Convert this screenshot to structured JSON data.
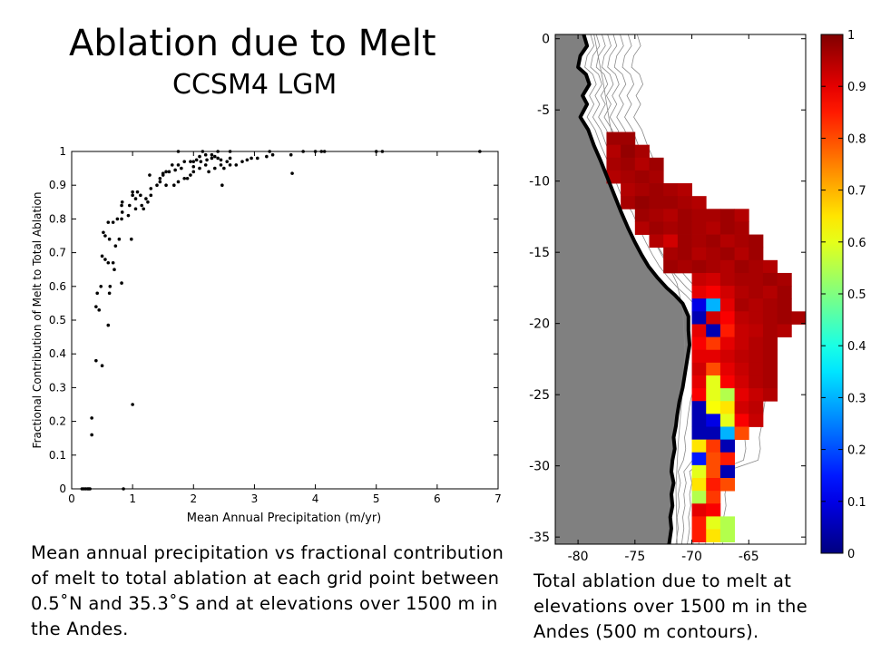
{
  "title": "Ablation due to Melt",
  "subtitle": "CCSM4 LGM",
  "caption_left": "Mean annual precipitation vs fractional contribution of melt to total ablation at each grid point between 0.5˚N and 35.3˚S and at elevations over 1500 m in the Andes.",
  "caption_right": "Total ablation due to melt at elevations over 1500 m in the Andes (500 m contours).",
  "colors": {
    "land": "#808080",
    "coast": "#000000",
    "contour": "#8a8a8a"
  },
  "chart_data": [
    {
      "type": "scatter",
      "xlabel": "Mean Annual Precipitation (m/yr)",
      "ylabel": "Fractional Contribution of Melt to Total Ablation",
      "xlim": [
        0,
        7
      ],
      "ylim": [
        0,
        1
      ],
      "xticks": [
        0,
        1,
        2,
        3,
        4,
        5,
        6,
        7
      ],
      "yticks": [
        0,
        0.1,
        0.2,
        0.3,
        0.4,
        0.5,
        0.6,
        0.7,
        0.8,
        0.9,
        1
      ],
      "grid": false,
      "points": [
        [
          0.17,
          0
        ],
        [
          0.2,
          0
        ],
        [
          0.23,
          0
        ],
        [
          0.26,
          0
        ],
        [
          0.28,
          0
        ],
        [
          0.3,
          0
        ],
        [
          0.85,
          0
        ],
        [
          0.33,
          0.21
        ],
        [
          0.33,
          0.16
        ],
        [
          0.4,
          0.38
        ],
        [
          0.5,
          0.365
        ],
        [
          1.0,
          0.25
        ],
        [
          0.6,
          0.485
        ],
        [
          0.45,
          0.53
        ],
        [
          0.4,
          0.54
        ],
        [
          0.48,
          0.6
        ],
        [
          0.42,
          0.58
        ],
        [
          0.62,
          0.58
        ],
        [
          0.63,
          0.6
        ],
        [
          0.82,
          0.61
        ],
        [
          0.7,
          0.65
        ],
        [
          0.6,
          0.67
        ],
        [
          0.68,
          0.67
        ],
        [
          0.5,
          0.69
        ],
        [
          0.55,
          0.68
        ],
        [
          0.55,
          0.75
        ],
        [
          0.62,
          0.74
        ],
        [
          0.72,
          0.72
        ],
        [
          0.78,
          0.74
        ],
        [
          0.98,
          0.74
        ],
        [
          0.52,
          0.76
        ],
        [
          0.6,
          0.79
        ],
        [
          0.68,
          0.79
        ],
        [
          0.75,
          0.8
        ],
        [
          0.82,
          0.8
        ],
        [
          0.93,
          0.81
        ],
        [
          0.83,
          0.82
        ],
        [
          1.05,
          0.83
        ],
        [
          0.82,
          0.84
        ],
        [
          0.95,
          0.84
        ],
        [
          1.15,
          0.84
        ],
        [
          1.18,
          0.83
        ],
        [
          1.25,
          0.85
        ],
        [
          1.22,
          0.86
        ],
        [
          0.83,
          0.85
        ],
        [
          1.0,
          0.87
        ],
        [
          1.05,
          0.86
        ],
        [
          1.08,
          0.88
        ],
        [
          1.13,
          0.87
        ],
        [
          1.3,
          0.87
        ],
        [
          1.0,
          0.88
        ],
        [
          1.3,
          0.89
        ],
        [
          1.4,
          0.9
        ],
        [
          1.45,
          0.91
        ],
        [
          1.55,
          0.9
        ],
        [
          1.68,
          0.9
        ],
        [
          1.75,
          0.91
        ],
        [
          1.85,
          0.92
        ],
        [
          1.9,
          0.92
        ],
        [
          1.95,
          0.93
        ],
        [
          2.0,
          0.94
        ],
        [
          1.28,
          0.93
        ],
        [
          1.45,
          0.92
        ],
        [
          1.5,
          0.935
        ],
        [
          1.6,
          0.94
        ],
        [
          1.7,
          0.945
        ],
        [
          1.8,
          0.95
        ],
        [
          2.0,
          0.955
        ],
        [
          2.1,
          0.95
        ],
        [
          2.2,
          0.96
        ],
        [
          2.25,
          0.94
        ],
        [
          2.35,
          0.95
        ],
        [
          2.47,
          0.9
        ],
        [
          2.5,
          0.95
        ],
        [
          1.5,
          0.93
        ],
        [
          1.55,
          0.94
        ],
        [
          1.65,
          0.96
        ],
        [
          1.75,
          0.96
        ],
        [
          1.85,
          0.97
        ],
        [
          1.95,
          0.97
        ],
        [
          2.05,
          0.975
        ],
        [
          2.12,
          0.97
        ],
        [
          2.22,
          0.975
        ],
        [
          2.3,
          0.98
        ],
        [
          2.4,
          0.98
        ],
        [
          2.45,
          0.975
        ],
        [
          2.55,
          0.97
        ],
        [
          2.7,
          0.96
        ],
        [
          2.8,
          0.97
        ],
        [
          2.88,
          0.975
        ],
        [
          2.95,
          0.98
        ],
        [
          3.05,
          0.98
        ],
        [
          3.2,
          0.985
        ],
        [
          3.3,
          0.99
        ],
        [
          3.6,
          0.99
        ],
        [
          3.8,
          1
        ],
        [
          4.1,
          1
        ],
        [
          4.15,
          1
        ],
        [
          3.62,
          0.935
        ],
        [
          2.0,
          0.97
        ],
        [
          2.1,
          0.985
        ],
        [
          2.2,
          0.99
        ],
        [
          2.3,
          0.99
        ],
        [
          2.35,
          0.985
        ],
        [
          2.6,
          0.98
        ],
        [
          1.75,
          1
        ],
        [
          2.15,
          1
        ],
        [
          2.4,
          1
        ],
        [
          2.6,
          1
        ],
        [
          3.25,
          1
        ],
        [
          4.0,
          1
        ],
        [
          5.0,
          1
        ],
        [
          5.1,
          1
        ],
        [
          6.7,
          1
        ],
        [
          2.45,
          0.96
        ],
        [
          2.6,
          0.96
        ]
      ]
    },
    {
      "type": "heatmap",
      "xlim": [
        -82,
        -60
      ],
      "ylim": [
        -35.5,
        0.3
      ],
      "xticks": [
        -80,
        -75,
        -70,
        -65
      ],
      "yticks": [
        0,
        -5,
        -10,
        -15,
        -20,
        -25,
        -30,
        -35
      ],
      "colorbar": {
        "min": 0,
        "max": 1,
        "ticks": [
          0,
          0.1,
          0.2,
          0.3,
          0.4,
          0.5,
          0.6,
          0.7,
          0.8,
          0.9,
          1
        ]
      },
      "cell_lon_step": 1.25,
      "cell_lat_step": 0.9,
      "row_lats": [
        -7.0,
        -7.9,
        -8.8,
        -9.7,
        -10.6,
        -11.5,
        -12.4,
        -13.3,
        -14.2,
        -15.1,
        -16.0,
        -16.9,
        -17.8,
        -18.7,
        -19.6,
        -20.5,
        -21.4,
        -22.3,
        -23.2,
        -24.1,
        -25.0,
        -25.9,
        -26.8,
        -27.7,
        -28.6,
        -29.5,
        -30.4,
        -31.3,
        -32.2,
        -33.1,
        -34.0,
        -34.9
      ],
      "rows": [
        {
          "lon0": -77.5,
          "values": [
            0.97,
            0.97
          ]
        },
        {
          "lon0": -77.5,
          "values": [
            0.95,
            0.98,
            0.96
          ]
        },
        {
          "lon0": -77.5,
          "values": [
            0.96,
            0.97,
            0.95,
            0.97
          ]
        },
        {
          "lon0": -77.5,
          "values": [
            0.95,
            0.96,
            0.97,
            0.96
          ]
        },
        {
          "lon0": -76.25,
          "values": [
            0.95,
            0.96,
            0.97,
            0.96,
            0.95
          ]
        },
        {
          "lon0": -76.25,
          "values": [
            0.96,
            0.98,
            0.97,
            0.97,
            0.96,
            0.95
          ]
        },
        {
          "lon0": -75.0,
          "values": [
            0.97,
            0.96,
            0.95,
            0.97,
            0.96,
            0.96,
            0.97,
            0.95
          ]
        },
        {
          "lon0": -75.0,
          "values": [
            0.95,
            0.97,
            0.96,
            0.97,
            0.96,
            0.95,
            0.97,
            0.96
          ]
        },
        {
          "lon0": -73.75,
          "values": [
            0.95,
            0.92,
            0.97,
            0.96,
            0.97,
            0.95,
            0.96,
            0.97
          ]
        },
        {
          "lon0": -72.5,
          "values": [
            0.96,
            0.97,
            0.95,
            0.96,
            0.97,
            0.95,
            0.97
          ]
        },
        {
          "lon0": -72.5,
          "values": [
            0.97,
            0.96,
            0.97,
            0.96,
            0.95,
            0.97,
            0.96,
            0.95
          ]
        },
        {
          "lon0": -70.0,
          "values": [
            0.93,
            0.92,
            0.95,
            0.96,
            0.96,
            0.97,
            0.96
          ]
        },
        {
          "lon0": -70.0,
          "values": [
            0.9,
            0.88,
            0.92,
            0.95,
            0.96,
            0.95,
            0.97
          ]
        },
        {
          "lon0": -70.0,
          "values": [
            0.1,
            0.3,
            0.9,
            0.96,
            0.95,
            0.96,
            0.97
          ]
        },
        {
          "lon0": -70.0,
          "values": [
            0.05,
            0.92,
            0.88,
            0.94,
            0.95,
            0.96,
            0.97,
            0.96
          ]
        },
        {
          "lon0": -70.0,
          "values": [
            0.9,
            0.05,
            0.85,
            0.93,
            0.94,
            0.96,
            0.95
          ]
        },
        {
          "lon0": -70.0,
          "values": [
            0.88,
            0.82,
            0.9,
            0.93,
            0.95,
            0.96
          ]
        },
        {
          "lon0": -70.0,
          "values": [
            0.9,
            0.9,
            0.92,
            0.94,
            0.95,
            0.96
          ]
        },
        {
          "lon0": -70.0,
          "values": [
            0.92,
            0.8,
            0.9,
            0.93,
            0.95,
            0.96
          ]
        },
        {
          "lon0": -70.0,
          "values": [
            0.9,
            0.6,
            0.88,
            0.92,
            0.95,
            0.96
          ]
        },
        {
          "lon0": -70.0,
          "values": [
            0.88,
            0.6,
            0.55,
            0.9,
            0.93,
            0.95
          ]
        },
        {
          "lon0": -70.0,
          "values": [
            0.05,
            0.62,
            0.65,
            0.92,
            0.94
          ]
        },
        {
          "lon0": -70.0,
          "values": [
            0.05,
            0.1,
            0.6,
            0.88,
            0.93
          ]
        },
        {
          "lon0": -70.0,
          "values": [
            0.05,
            0.05,
            0.3,
            0.8
          ]
        },
        {
          "lon0": -70.0,
          "values": [
            0.65,
            0.82,
            0.05
          ]
        },
        {
          "lon0": -70.0,
          "values": [
            0.15,
            0.8,
            0.85
          ]
        },
        {
          "lon0": -70.0,
          "values": [
            0.6,
            0.8,
            0.05
          ]
        },
        {
          "lon0": -70.0,
          "values": [
            0.65,
            0.85,
            0.8
          ]
        },
        {
          "lon0": -70.0,
          "values": [
            0.55,
            0.82
          ]
        },
        {
          "lon0": -70.0,
          "values": [
            0.9,
            0.88
          ]
        },
        {
          "lon0": -70.0,
          "values": [
            0.85,
            0.6,
            0.55
          ]
        },
        {
          "lon0": -70.0,
          "values": [
            0.85,
            0.65,
            0.55
          ]
        }
      ],
      "coast_lons": [
        -79.5,
        -79.2,
        -79.8,
        -80.0,
        -79.3,
        -79.0,
        -79.6,
        -79.2,
        -79.8,
        -79.1,
        -78.6,
        -78.0,
        -77.4,
        -76.8,
        -76.2,
        -75.6,
        -75.0,
        -74.4,
        -73.8,
        -73.0,
        -72.2,
        -71.5,
        -70.8,
        -70.3,
        -70.3,
        -70.2,
        -70.4,
        -70.6,
        -70.8,
        -71.1,
        -71.3,
        -71.4,
        -71.6,
        -71.5,
        -71.7,
        -71.8,
        -71.6,
        -71.8,
        -71.7,
        -71.9,
        -71.8,
        -72.0
      ],
      "coast_lats": [
        0.3,
        -0.5,
        -1.2,
        -2.0,
        -2.5,
        -3.2,
        -4.0,
        -4.6,
        -5.5,
        -6.4,
        -7.5,
        -8.6,
        -9.8,
        -11.0,
        -12.2,
        -13.3,
        -14.3,
        -15.2,
        -16.0,
        -16.8,
        -17.5,
        -18.0,
        -18.6,
        -19.5,
        -20.5,
        -21.5,
        -22.5,
        -23.5,
        -24.5,
        -25.5,
        -26.5,
        -27.2,
        -28.0,
        -28.8,
        -29.6,
        -30.4,
        -31.2,
        -32.0,
        -32.8,
        -33.6,
        -34.4,
        -35.5
      ],
      "offshore_lons": [
        -78.6,
        -77.8,
        -77.2,
        -76.5,
        -75.5,
        -74.5,
        -73.4,
        -72.3,
        -71.3,
        -70.8,
        -70.6,
        -70.9,
        -71.2,
        -71.4,
        -71.3
      ],
      "offshore_lats": [
        0.3,
        -3.0,
        -6.0,
        -8.5,
        -10.5,
        -12.5,
        -14.0,
        -15.5,
        -17.2,
        -19.0,
        -22.0,
        -25.5,
        -28.5,
        -31.5,
        -35.5
      ]
    }
  ]
}
